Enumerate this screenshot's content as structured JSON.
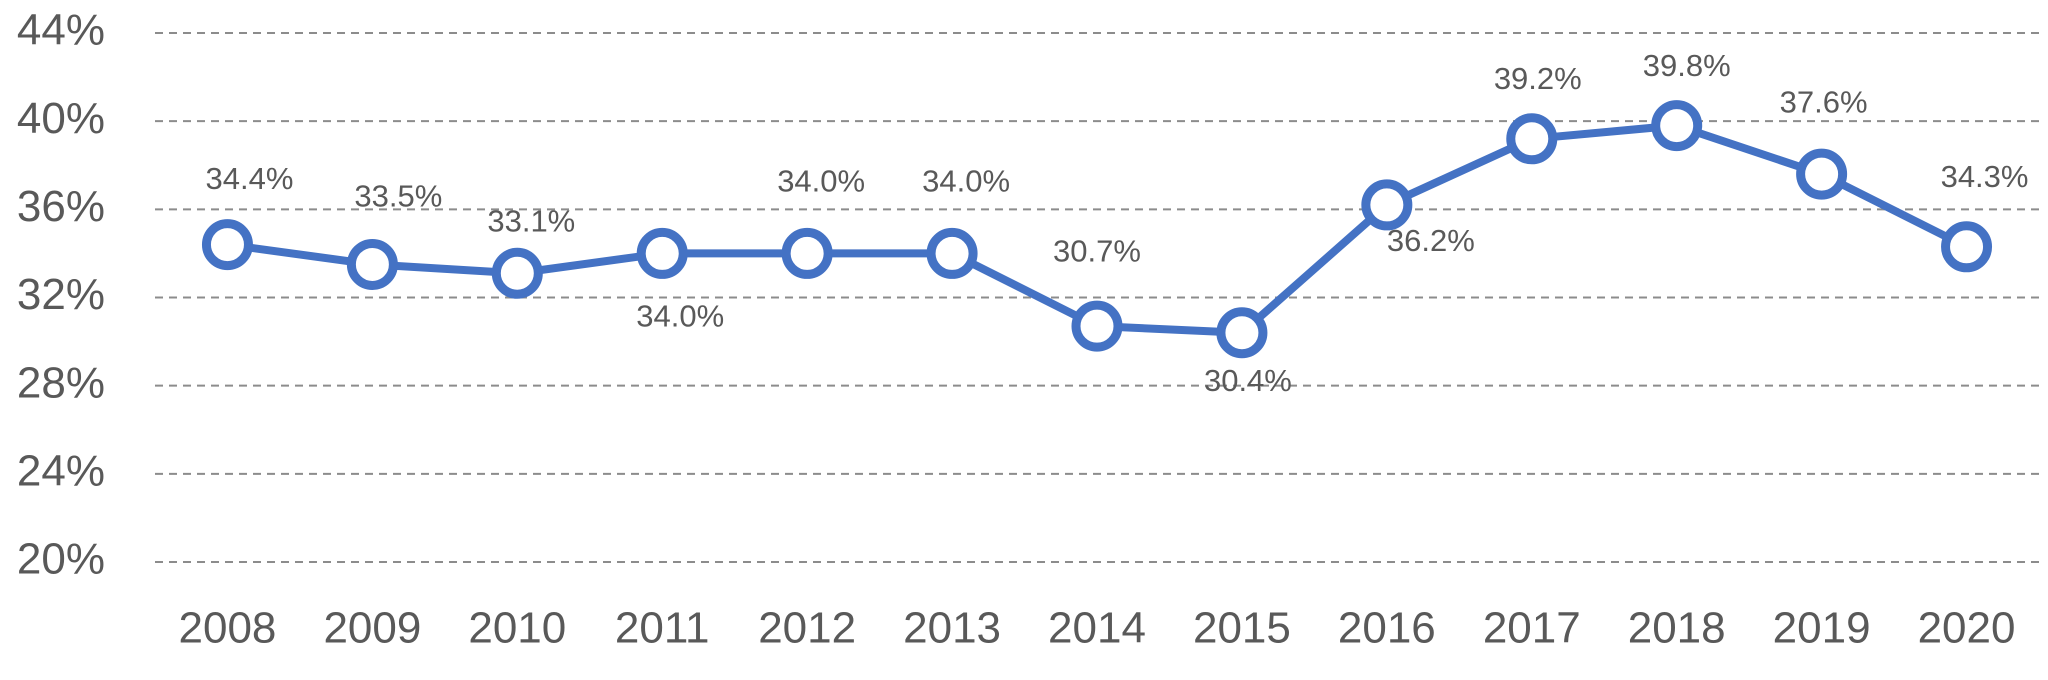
{
  "chart_data": {
    "type": "line",
    "categories": [
      "2008",
      "2009",
      "2010",
      "2011",
      "2012",
      "2013",
      "2014",
      "2015",
      "2016",
      "2017",
      "2018",
      "2019",
      "2020"
    ],
    "series": [
      {
        "color": "#4472c4",
        "values": [
          34.4,
          33.5,
          33.1,
          34.0,
          34.0,
          34.0,
          30.7,
          30.4,
          36.2,
          39.2,
          39.8,
          37.6,
          34.3
        ],
        "value_labels": [
          "34.4%",
          "33.5%",
          "33.1%",
          "34.0%",
          "34.0%",
          "34.0%",
          "30.7%",
          "30.4%",
          "36.2%",
          "39.2%",
          "39.8%",
          "37.6%",
          "34.3%"
        ]
      }
    ],
    "ylim": [
      20,
      44
    ],
    "yticks": [
      {
        "value": 20,
        "label": "20%"
      },
      {
        "value": 24,
        "label": "24%"
      },
      {
        "value": 28,
        "label": "28%"
      },
      {
        "value": 32,
        "label": "32%"
      },
      {
        "value": 36,
        "label": "36%"
      },
      {
        "value": 40,
        "label": "40%"
      },
      {
        "value": 44,
        "label": "44%"
      }
    ],
    "grid": true
  }
}
